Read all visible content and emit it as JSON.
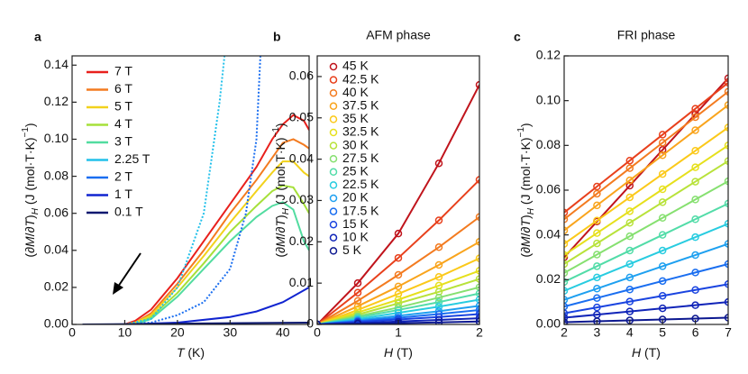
{
  "chart_data": [
    {
      "type": "line",
      "panel": "a",
      "xlabel": [
        "T",
        " (K)"
      ],
      "ylabel": [
        "(∂",
        "M",
        "/∂",
        "T",
        ")",
        "H",
        " (J (mol·T·K)",
        "−1",
        ")"
      ],
      "xlim": [
        0,
        45
      ],
      "xticks": [
        0,
        10,
        20,
        30,
        40
      ],
      "ylim": [
        0,
        0.145
      ],
      "yticks": [
        {
          "value": 0,
          "label": "0.00"
        },
        0.02,
        0.04,
        0.06,
        0.08,
        {
          "value": 0.1,
          "label": "0.10"
        },
        0.12,
        0.14
      ],
      "legend": "upper left",
      "series": [
        {
          "name": "7 T",
          "color": "#e8201c",
          "x": [
            2,
            5,
            10,
            12,
            15,
            20,
            25,
            30,
            35,
            38,
            40,
            42,
            44,
            45
          ],
          "values": [
            0,
            0,
            0,
            0.002,
            0.008,
            0.025,
            0.045,
            0.065,
            0.085,
            0.1,
            0.108,
            0.113,
            0.11,
            0.105
          ]
        },
        {
          "name": "6 T",
          "color": "#f37b20",
          "x": [
            2,
            5,
            10,
            12,
            15,
            20,
            25,
            30,
            35,
            38,
            40,
            42,
            44,
            45
          ],
          "values": [
            0,
            0,
            0,
            0.001,
            0.006,
            0.022,
            0.04,
            0.06,
            0.078,
            0.09,
            0.098,
            0.1,
            0.097,
            0.095
          ]
        },
        {
          "name": "5 T",
          "color": "#f2d21c",
          "x": [
            2,
            5,
            10,
            12,
            15,
            20,
            25,
            30,
            35,
            38,
            40,
            42,
            44,
            45
          ],
          "values": [
            0,
            0,
            0,
            0.001,
            0.005,
            0.02,
            0.037,
            0.055,
            0.072,
            0.082,
            0.088,
            0.088,
            0.082,
            0.08
          ]
        },
        {
          "name": "4 T",
          "color": "#a6e03a",
          "x": [
            2,
            5,
            10,
            12,
            15,
            20,
            25,
            30,
            35,
            38,
            40,
            42,
            44,
            45
          ],
          "values": [
            0,
            0,
            0,
            0,
            0.004,
            0.017,
            0.033,
            0.05,
            0.064,
            0.072,
            0.075,
            0.074,
            0.065,
            0.06
          ]
        },
        {
          "name": "3 T",
          "color": "#52dca0",
          "x": [
            2,
            5,
            10,
            12,
            15,
            20,
            25,
            30,
            35,
            38,
            40,
            42,
            44,
            45
          ],
          "values": [
            0,
            0,
            0,
            0,
            0.003,
            0.015,
            0.03,
            0.045,
            0.058,
            0.064,
            0.066,
            0.062,
            0.045,
            0.04
          ]
        },
        {
          "name": "2.25 T",
          "color": "#22c0ea",
          "dashed": true,
          "x": [
            2,
            10,
            15,
            20,
            25,
            28,
            29.5
          ],
          "values": [
            0,
            0,
            0.003,
            0.02,
            0.06,
            0.12,
            0.16
          ]
        },
        {
          "name": "2 T",
          "color": "#1a6ef0",
          "dashed": true,
          "x": [
            2,
            10,
            15,
            20,
            25,
            30,
            33,
            35,
            36
          ],
          "values": [
            0,
            0,
            0.001,
            0.005,
            0.012,
            0.03,
            0.06,
            0.1,
            0.16
          ]
        },
        {
          "name": "1 T",
          "color": "#1024d0",
          "x": [
            2,
            10,
            20,
            30,
            35,
            40,
            45
          ],
          "values": [
            0,
            0,
            0.001,
            0.004,
            0.007,
            0.012,
            0.02
          ]
        },
        {
          "name": "0.1 T",
          "color": "#0c1870",
          "x": [
            2,
            45
          ],
          "values": [
            0,
            0.001
          ]
        }
      ]
    },
    {
      "type": "line",
      "panel": "b",
      "title": "AFM phase",
      "markers": true,
      "xlabel": [
        "H",
        " (T)"
      ],
      "ylabel": [
        "(∂",
        "M",
        "/∂",
        "T",
        ")",
        "H",
        " (J (mol·T·K)",
        "−1",
        ")"
      ],
      "xlim": [
        0,
        2
      ],
      "xticks": [
        0,
        1,
        2
      ],
      "ylim": [
        0,
        0.065
      ],
      "yticks": [
        0,
        0.01,
        0.02,
        0.03,
        0.04,
        0.05,
        0.06
      ],
      "legend": "upper left",
      "x": [
        0,
        0.5,
        1,
        1.5,
        2
      ],
      "series": [
        {
          "name": "45 K",
          "color": "#c0141c",
          "values": [
            0,
            0.01,
            0.022,
            0.039,
            0.058
          ]
        },
        {
          "name": "42.5 K",
          "color": "#e8401c",
          "values": [
            0,
            0.0077,
            0.0161,
            0.0252,
            0.035
          ]
        },
        {
          "name": "40 K",
          "color": "#f37b20",
          "values": [
            0,
            0.0057,
            0.012,
            0.0187,
            0.026
          ]
        },
        {
          "name": "37.5 K",
          "color": "#f9a41c",
          "values": [
            0,
            0.0044,
            0.0092,
            0.0144,
            0.02
          ]
        },
        {
          "name": "35 K",
          "color": "#fbc91a",
          "values": [
            0,
            0.0035,
            0.0074,
            0.0115,
            0.016
          ]
        },
        {
          "name": "32.5 K",
          "color": "#e6e01c",
          "values": [
            0,
            0.0029,
            0.006,
            0.0094,
            0.013
          ]
        },
        {
          "name": "30 K",
          "color": "#b8e23a",
          "values": [
            0,
            0.0024,
            0.0051,
            0.0079,
            0.011
          ]
        },
        {
          "name": "27.5 K",
          "color": "#86e070",
          "values": [
            0,
            0.002,
            0.0041,
            0.0065,
            0.009
          ]
        },
        {
          "name": "25 K",
          "color": "#52dca8",
          "values": [
            0,
            0.0017,
            0.0035,
            0.0054,
            0.0075
          ]
        },
        {
          "name": "22.5 K",
          "color": "#28cce0",
          "values": [
            0,
            0.0013,
            0.0028,
            0.0043,
            0.006
          ]
        },
        {
          "name": "20 K",
          "color": "#1ea0f0",
          "values": [
            0,
            0.001,
            0.0021,
            0.0032,
            0.0045
          ]
        },
        {
          "name": "17.5 K",
          "color": "#1a6ef0",
          "values": [
            0,
            0.0008,
            0.0016,
            0.0025,
            0.0035
          ]
        },
        {
          "name": "15 K",
          "color": "#1a44e0",
          "values": [
            0,
            0.0006,
            0.0012,
            0.0018,
            0.0025
          ]
        },
        {
          "name": "10 K",
          "color": "#1024b8",
          "values": [
            0,
            0.0003,
            0.0007,
            0.0011,
            0.0015
          ]
        },
        {
          "name": "5 K",
          "color": "#0c1890",
          "values": [
            0,
            0.0002,
            0.0003,
            0.0005,
            0.0007
          ]
        }
      ]
    },
    {
      "type": "line",
      "panel": "c",
      "title": "FRI phase",
      "markers": true,
      "xlabel": [
        "H",
        " (T)"
      ],
      "ylabel": [
        "(∂",
        "M",
        "/∂",
        "T",
        ")",
        "H",
        " (J (mol·T·K)",
        "−1",
        ")"
      ],
      "xlim": [
        2,
        7
      ],
      "xticks": [
        2,
        3,
        4,
        5,
        6,
        7
      ],
      "ylim": [
        0,
        0.12
      ],
      "yticks": [
        {
          "value": 0,
          "label": "0.00"
        },
        0.02,
        0.04,
        0.06,
        0.08,
        {
          "value": 0.1,
          "label": "0.10"
        },
        0.12
      ],
      "x": [
        2,
        3,
        4,
        5,
        6,
        7
      ],
      "series": [
        {
          "color": "#c0141c",
          "values": [
            0.03,
            0.046,
            0.062,
            0.078,
            0.094,
            0.11
          ]
        },
        {
          "color": "#e8401c",
          "values": [
            0.05,
            0.0616,
            0.0732,
            0.0848,
            0.0964,
            0.108
          ]
        },
        {
          "color": "#f37b20",
          "values": [
            0.047,
            0.0584,
            0.0698,
            0.0812,
            0.0926,
            0.104
          ]
        },
        {
          "color": "#f9a41c",
          "values": [
            0.042,
            0.0532,
            0.0644,
            0.0756,
            0.0868,
            0.098
          ]
        },
        {
          "color": "#fbc91a",
          "values": [
            0.036,
            0.0464,
            0.0568,
            0.0672,
            0.0776,
            0.088
          ]
        },
        {
          "color": "#e6e01c",
          "values": [
            0.031,
            0.0408,
            0.0506,
            0.0604,
            0.0702,
            0.08
          ]
        },
        {
          "color": "#b8e23a",
          "values": [
            0.027,
            0.0362,
            0.0454,
            0.0546,
            0.0638,
            0.073
          ]
        },
        {
          "color": "#86e070",
          "values": [
            0.023,
            0.0312,
            0.0394,
            0.0476,
            0.0558,
            0.064
          ]
        },
        {
          "color": "#52dca8",
          "values": [
            0.019,
            0.026,
            0.033,
            0.04,
            0.047,
            0.054
          ]
        },
        {
          "color": "#28cce0",
          "values": [
            0.015,
            0.021,
            0.027,
            0.033,
            0.039,
            0.045
          ]
        },
        {
          "color": "#1ea0f0",
          "values": [
            0.011,
            0.016,
            0.021,
            0.026,
            0.031,
            0.036
          ]
        },
        {
          "color": "#1a6ef0",
          "values": [
            0.008,
            0.0118,
            0.0156,
            0.0194,
            0.0232,
            0.027
          ]
        },
        {
          "color": "#1a44e0",
          "values": [
            0.005,
            0.0076,
            0.0102,
            0.0128,
            0.0154,
            0.018
          ]
        },
        {
          "color": "#1024b8",
          "values": [
            0.003,
            0.0044,
            0.0058,
            0.0072,
            0.0086,
            0.01
          ]
        },
        {
          "color": "#0c1890",
          "values": [
            0.001,
            0.0014,
            0.0018,
            0.0022,
            0.0026,
            0.003
          ]
        }
      ]
    }
  ]
}
